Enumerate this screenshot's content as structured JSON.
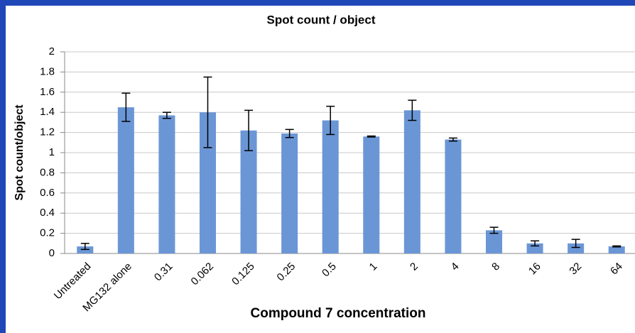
{
  "chart_data": {
    "type": "bar",
    "title": "Spot count / object",
    "x_label": "Compound 7 concentration",
    "y_label": "Spot count/object",
    "categories": [
      "Untreated",
      "MG132 alone",
      "0.31",
      "0.062",
      "0.125",
      "0.25",
      "0.5",
      "1",
      "2",
      "4",
      "8",
      "16",
      "32",
      "64"
    ],
    "values": [
      0.07,
      1.45,
      1.37,
      1.4,
      1.22,
      1.19,
      1.32,
      1.16,
      1.42,
      1.13,
      0.23,
      0.1,
      0.1,
      0.07
    ],
    "errors": [
      0.03,
      0.14,
      0.03,
      0.35,
      0.2,
      0.04,
      0.14,
      0.005,
      0.1,
      0.015,
      0.03,
      0.025,
      0.04,
      0.005
    ],
    "color": "#6b96d6",
    "ylim": [
      0,
      2
    ],
    "yticks": [
      0,
      0.2,
      0.4,
      0.6,
      0.8,
      1,
      1.2,
      1.4,
      1.6,
      1.8,
      2
    ],
    "grid": true
  }
}
